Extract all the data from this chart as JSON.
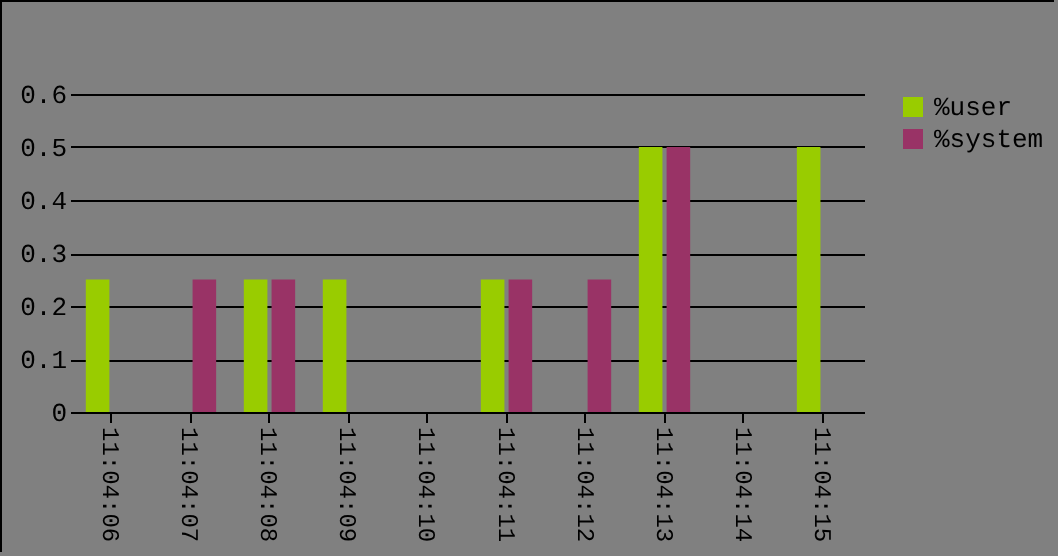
{
  "chart_data": {
    "type": "bar",
    "categories": [
      "11:04:06",
      "11:04:07",
      "11:04:08",
      "11:04:09",
      "11:04:10",
      "11:04:11",
      "11:04:12",
      "11:04:13",
      "11:04:14",
      "11:04:15"
    ],
    "series": [
      {
        "name": "%user",
        "color": "#99cc00",
        "values": [
          0.25,
          0,
          0.25,
          0.25,
          0,
          0.25,
          0,
          0.5,
          0,
          0.5
        ]
      },
      {
        "name": "%system",
        "color": "#993366",
        "values": [
          0,
          0.25,
          0.25,
          0,
          0,
          0.25,
          0.25,
          0.5,
          0,
          0
        ]
      }
    ],
    "ylim": [
      0,
      0.6
    ],
    "yticks": [
      0,
      0.1,
      0.2,
      0.3,
      0.4,
      0.5,
      0.6
    ],
    "grid": "y",
    "legend": "right"
  }
}
